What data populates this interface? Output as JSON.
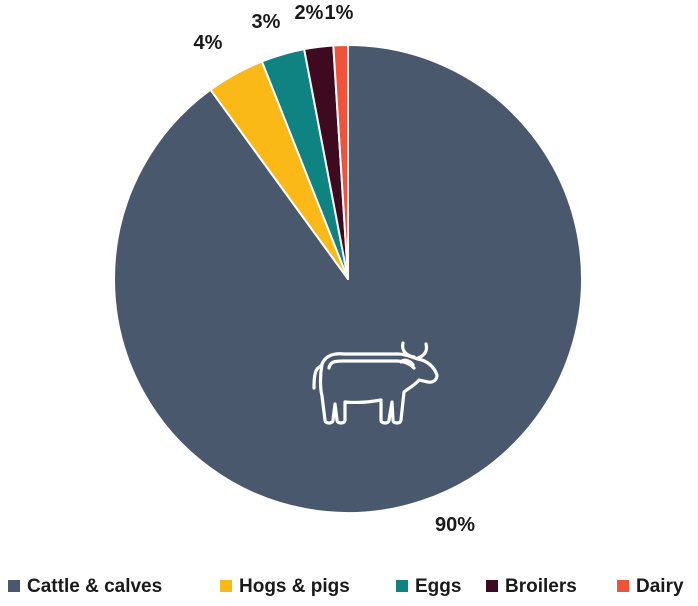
{
  "chart_data": {
    "type": "pie",
    "title": "",
    "categories": [
      "Cattle & calves",
      "Hogs & pigs",
      "Eggs",
      "Broilers",
      "Dairy"
    ],
    "values": [
      90,
      4,
      3,
      2,
      1
    ],
    "data_labels": [
      "90%",
      "4%",
      "3%",
      "2%",
      "1%"
    ],
    "colors": [
      "#4a586e",
      "#fbb917",
      "#0e8381",
      "#3d0a1f",
      "#f0533a"
    ],
    "legend_position": "bottom",
    "start_angle": "12 o'clock, clockwise",
    "slice_border_color": "#ffffff",
    "icon": "cow-icon"
  }
}
